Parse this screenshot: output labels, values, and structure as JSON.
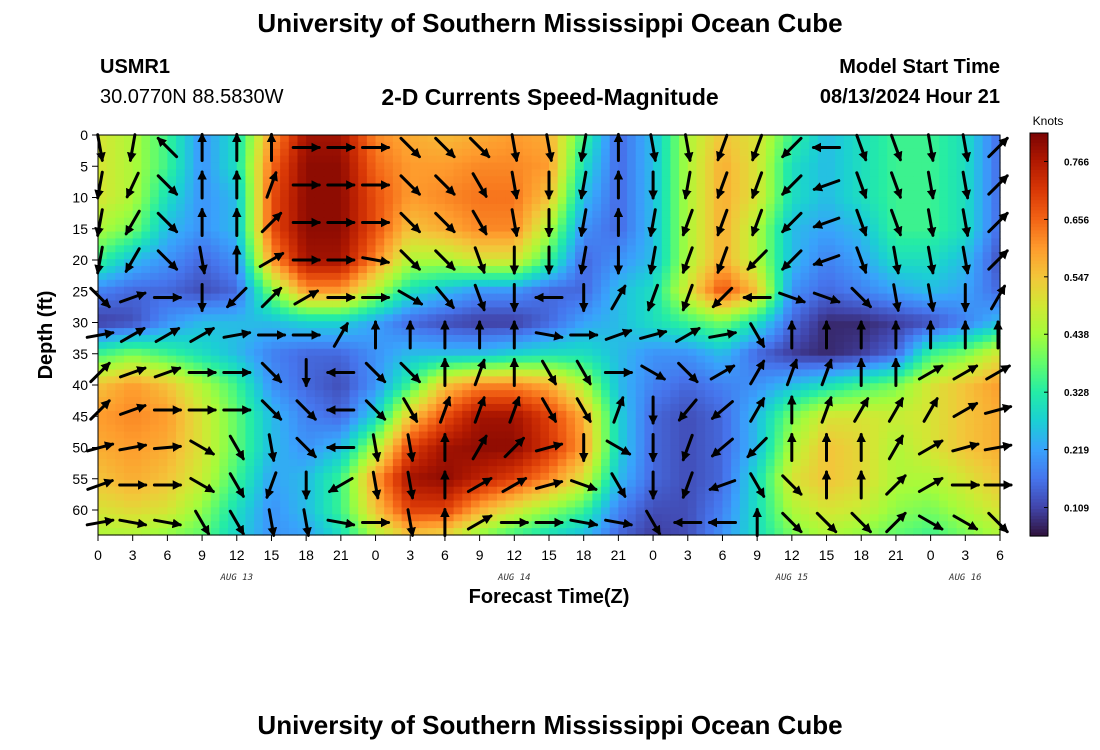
{
  "page": {
    "title_top": "University of Southern Mississippi Ocean Cube",
    "title_bottom": "University of Southern Mississippi Ocean Cube",
    "station_id": "USMR1",
    "station_coords": "30.0770N  88.5830W",
    "product": "2-D Currents Speed-Magnitude",
    "model_label": "Model Start Time",
    "model_time": "08/13/2024 Hour 21"
  },
  "colors": {
    "colormap": [
      "#30123b",
      "#4145ab",
      "#4675ed",
      "#39a2fc",
      "#1bcfd4",
      "#24eca6",
      "#61fc6c",
      "#a4fc3b",
      "#d1e834",
      "#f3c63a",
      "#fe9b2d",
      "#f36315",
      "#d93806",
      "#b11901",
      "#7a0403"
    ]
  },
  "chart_data": {
    "type": "heatmap",
    "title": "2-D Currents Speed-Magnitude",
    "xlabel": "Forecast Time(Z)",
    "ylabel": "Depth (ft)",
    "x_tick_labels": [
      "0",
      "3",
      "6",
      "9",
      "12",
      "15",
      "18",
      "21",
      "0",
      "3",
      "6",
      "9",
      "12",
      "15",
      "18",
      "21",
      "0",
      "3",
      "6",
      "9",
      "12",
      "15",
      "18",
      "21",
      "0",
      "3",
      "6"
    ],
    "x_range_hours": [
      0,
      78
    ],
    "date_labels": [
      {
        "label": "AUG 13",
        "hour": 12
      },
      {
        "label": "AUG 14",
        "hour": 36
      },
      {
        "label": "AUG 15",
        "hour": 60
      },
      {
        "label": "AUG 16",
        "hour": 75
      }
    ],
    "y_tick_labels": [
      "0",
      "5",
      "10",
      "15",
      "20",
      "25",
      "30",
      "35",
      "40",
      "45",
      "50",
      "55",
      "60"
    ],
    "y_range_ft": [
      0,
      64
    ],
    "colorbar": {
      "title": "Knots",
      "labels": [
        "0.766",
        "0.656",
        "0.547",
        "0.438",
        "0.328",
        "0.219",
        "0.109"
      ],
      "range": [
        0.055,
        0.82
      ]
    },
    "speed_field": {
      "x_hours": [
        0,
        3,
        6,
        9,
        12,
        15,
        18,
        21,
        24,
        27,
        30,
        33,
        36,
        39,
        42,
        45,
        48,
        51,
        54,
        57,
        60,
        63,
        66,
        69,
        72,
        75,
        78
      ],
      "depths_ft": [
        0,
        5,
        10,
        15,
        20,
        25,
        30,
        35,
        40,
        45,
        50,
        55,
        60,
        64
      ],
      "values": [
        [
          0.5,
          0.45,
          0.35,
          0.2,
          0.3,
          0.6,
          0.78,
          0.78,
          0.62,
          0.58,
          0.56,
          0.58,
          0.6,
          0.58,
          0.35,
          0.15,
          0.25,
          0.45,
          0.55,
          0.5,
          0.35,
          0.25,
          0.3,
          0.35,
          0.35,
          0.3,
          0.15
        ],
        [
          0.5,
          0.45,
          0.35,
          0.2,
          0.3,
          0.65,
          0.8,
          0.8,
          0.65,
          0.6,
          0.6,
          0.62,
          0.62,
          0.6,
          0.3,
          0.15,
          0.25,
          0.45,
          0.58,
          0.5,
          0.3,
          0.25,
          0.3,
          0.35,
          0.35,
          0.3,
          0.15
        ],
        [
          0.5,
          0.45,
          0.3,
          0.2,
          0.25,
          0.68,
          0.8,
          0.8,
          0.68,
          0.6,
          0.62,
          0.64,
          0.64,
          0.55,
          0.25,
          0.15,
          0.25,
          0.45,
          0.58,
          0.5,
          0.3,
          0.25,
          0.3,
          0.35,
          0.35,
          0.3,
          0.15
        ],
        [
          0.45,
          0.4,
          0.25,
          0.2,
          0.25,
          0.68,
          0.8,
          0.8,
          0.68,
          0.55,
          0.58,
          0.62,
          0.62,
          0.45,
          0.2,
          0.15,
          0.25,
          0.45,
          0.58,
          0.45,
          0.25,
          0.22,
          0.25,
          0.35,
          0.35,
          0.3,
          0.15
        ],
        [
          0.35,
          0.25,
          0.2,
          0.15,
          0.2,
          0.6,
          0.78,
          0.78,
          0.62,
          0.45,
          0.45,
          0.5,
          0.5,
          0.35,
          0.15,
          0.2,
          0.25,
          0.45,
          0.58,
          0.45,
          0.25,
          0.18,
          0.22,
          0.3,
          0.3,
          0.25,
          0.12
        ],
        [
          0.18,
          0.15,
          0.15,
          0.12,
          0.15,
          0.4,
          0.6,
          0.6,
          0.45,
          0.3,
          0.25,
          0.2,
          0.2,
          0.15,
          0.15,
          0.25,
          0.3,
          0.5,
          0.68,
          0.55,
          0.2,
          0.15,
          0.18,
          0.22,
          0.25,
          0.22,
          0.15
        ],
        [
          0.1,
          0.12,
          0.2,
          0.25,
          0.25,
          0.25,
          0.28,
          0.28,
          0.22,
          0.15,
          0.12,
          0.1,
          0.1,
          0.15,
          0.22,
          0.25,
          0.3,
          0.35,
          0.4,
          0.3,
          0.15,
          0.08,
          0.08,
          0.1,
          0.12,
          0.18,
          0.25
        ],
        [
          0.35,
          0.4,
          0.35,
          0.3,
          0.25,
          0.18,
          0.15,
          0.15,
          0.2,
          0.25,
          0.25,
          0.25,
          0.28,
          0.3,
          0.3,
          0.25,
          0.2,
          0.2,
          0.25,
          0.15,
          0.1,
          0.08,
          0.1,
          0.15,
          0.35,
          0.4,
          0.5
        ],
        [
          0.55,
          0.6,
          0.55,
          0.45,
          0.35,
          0.2,
          0.15,
          0.12,
          0.2,
          0.35,
          0.55,
          0.62,
          0.62,
          0.58,
          0.45,
          0.25,
          0.18,
          0.15,
          0.18,
          0.2,
          0.25,
          0.3,
          0.35,
          0.4,
          0.5,
          0.55,
          0.6
        ],
        [
          0.6,
          0.62,
          0.6,
          0.5,
          0.38,
          0.25,
          0.18,
          0.15,
          0.28,
          0.55,
          0.68,
          0.78,
          0.78,
          0.7,
          0.58,
          0.28,
          0.15,
          0.12,
          0.15,
          0.25,
          0.4,
          0.5,
          0.5,
          0.48,
          0.5,
          0.55,
          0.58
        ],
        [
          0.58,
          0.6,
          0.58,
          0.5,
          0.38,
          0.25,
          0.2,
          0.25,
          0.45,
          0.7,
          0.78,
          0.8,
          0.8,
          0.72,
          0.6,
          0.28,
          0.15,
          0.12,
          0.15,
          0.25,
          0.45,
          0.55,
          0.52,
          0.45,
          0.5,
          0.55,
          0.58
        ],
        [
          0.55,
          0.58,
          0.55,
          0.48,
          0.35,
          0.22,
          0.25,
          0.35,
          0.6,
          0.78,
          0.8,
          0.75,
          0.7,
          0.62,
          0.5,
          0.25,
          0.15,
          0.12,
          0.15,
          0.3,
          0.5,
          0.55,
          0.52,
          0.45,
          0.45,
          0.5,
          0.55
        ],
        [
          0.5,
          0.52,
          0.5,
          0.42,
          0.3,
          0.2,
          0.25,
          0.35,
          0.55,
          0.7,
          0.7,
          0.58,
          0.5,
          0.42,
          0.35,
          0.18,
          0.12,
          0.12,
          0.18,
          0.3,
          0.45,
          0.5,
          0.48,
          0.42,
          0.4,
          0.45,
          0.5
        ],
        [
          0.45,
          0.45,
          0.42,
          0.38,
          0.28,
          0.2,
          0.22,
          0.3,
          0.45,
          0.55,
          0.52,
          0.42,
          0.35,
          0.3,
          0.25,
          0.15,
          0.1,
          0.12,
          0.2,
          0.3,
          0.4,
          0.45,
          0.42,
          0.38,
          0.35,
          0.4,
          0.45
        ]
      ]
    },
    "vectors": {
      "x_hours": [
        0,
        3,
        6,
        9,
        12,
        15,
        18,
        21,
        24,
        27,
        30,
        33,
        36,
        39,
        42,
        45,
        48,
        51,
        54,
        57,
        60,
        63,
        66,
        69,
        72,
        75,
        78
      ],
      "depths_ft": [
        2,
        8,
        14,
        20,
        26,
        32,
        38,
        44,
        50,
        56,
        62
      ],
      "directions_deg": [
        [
          170,
          190,
          315,
          0,
          0,
          0,
          90,
          90,
          90,
          135,
          135,
          135,
          170,
          170,
          190,
          0,
          170,
          170,
          200,
          200,
          225,
          270,
          160,
          160,
          170,
          170,
          45
        ],
        [
          190,
          205,
          135,
          0,
          0,
          20,
          90,
          90,
          90,
          135,
          135,
          150,
          170,
          180,
          190,
          0,
          180,
          190,
          200,
          200,
          225,
          250,
          160,
          160,
          170,
          170,
          45
        ],
        [
          190,
          210,
          135,
          0,
          0,
          45,
          90,
          90,
          90,
          135,
          135,
          150,
          170,
          180,
          190,
          0,
          190,
          200,
          200,
          200,
          225,
          250,
          160,
          160,
          170,
          170,
          45
        ],
        [
          190,
          210,
          135,
          170,
          0,
          60,
          90,
          90,
          100,
          135,
          135,
          160,
          180,
          180,
          190,
          180,
          190,
          200,
          200,
          225,
          225,
          250,
          160,
          170,
          170,
          170,
          45
        ],
        [
          135,
          70,
          90,
          180,
          225,
          45,
          60,
          90,
          90,
          120,
          140,
          160,
          180,
          270,
          180,
          30,
          200,
          200,
          225,
          270,
          110,
          110,
          135,
          170,
          170,
          180,
          30
        ],
        [
          80,
          60,
          60,
          60,
          80,
          90,
          90,
          30,
          0,
          0,
          0,
          0,
          0,
          100,
          90,
          70,
          75,
          60,
          80,
          150,
          0,
          0,
          0,
          0,
          0,
          0,
          0
        ],
        [
          45,
          70,
          70,
          90,
          90,
          135,
          180,
          270,
          135,
          135,
          0,
          20,
          0,
          150,
          150,
          90,
          120,
          135,
          60,
          30,
          20,
          20,
          0,
          0,
          60,
          60,
          60
        ],
        [
          45,
          70,
          90,
          90,
          90,
          135,
          135,
          270,
          135,
          150,
          20,
          20,
          20,
          150,
          150,
          20,
          180,
          220,
          230,
          30,
          0,
          20,
          30,
          30,
          30,
          60,
          75
        ],
        [
          75,
          80,
          85,
          120,
          150,
          170,
          135,
          270,
          170,
          170,
          0,
          30,
          45,
          75,
          180,
          120,
          180,
          200,
          230,
          225,
          0,
          0,
          0,
          30,
          60,
          75,
          80
        ],
        [
          70,
          90,
          90,
          120,
          150,
          200,
          180,
          240,
          170,
          170,
          0,
          60,
          60,
          75,
          110,
          150,
          180,
          200,
          250,
          150,
          135,
          0,
          0,
          45,
          60,
          90,
          90
        ],
        [
          80,
          100,
          100,
          150,
          150,
          170,
          170,
          100,
          90,
          170,
          0,
          60,
          90,
          90,
          100,
          100,
          150,
          270,
          270,
          0,
          135,
          135,
          135,
          45,
          120,
          120,
          135
        ]
      ]
    }
  }
}
